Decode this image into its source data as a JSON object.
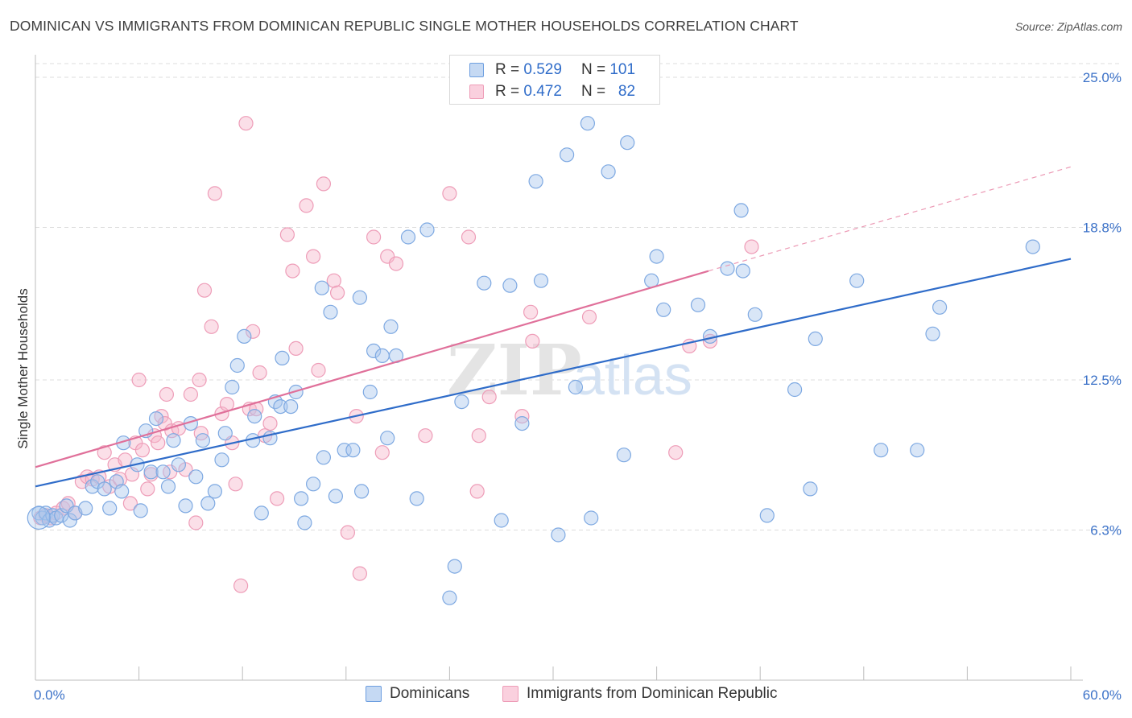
{
  "header": {
    "title": "DOMINICAN VS IMMIGRANTS FROM DOMINICAN REPUBLIC SINGLE MOTHER HOUSEHOLDS CORRELATION CHART",
    "source": "Source: ZipAtlas.com"
  },
  "legend_top": {
    "r_label": "R =",
    "n_label": "N =",
    "rows": [
      {
        "r": "0.529",
        "n": "101",
        "color": "#aac8ee"
      },
      {
        "r": "0.472",
        "n": "82",
        "color": "#f6b8cc"
      }
    ]
  },
  "watermark": {
    "zip": "ZIP",
    "atlas": "atlas"
  },
  "chart_data": {
    "type": "scatter",
    "title": "DOMINICAN VS IMMIGRANTS FROM DOMINICAN REPUBLIC SINGLE MOTHER HOUSEHOLDS CORRELATION CHART",
    "ylabel": "Single Mother Households",
    "xlabel": "",
    "xlim": [
      0,
      60
    ],
    "ylim": [
      0,
      26.3
    ],
    "x_tick_labels": [
      "0.0%",
      "60.0%"
    ],
    "y_ticks": [
      6.3,
      12.5,
      18.8,
      25.0
    ],
    "y_tick_labels": [
      "6.3%",
      "12.5%",
      "18.8%",
      "25.0%"
    ],
    "grid": true,
    "legend_position": "bottom",
    "colors": {
      "dominicans": "#2f6cc9",
      "immigrants": "#e0709a"
    },
    "series": [
      {
        "name": "Dominicans",
        "r": 0.529,
        "n": 101,
        "color": "#6e9fe0",
        "trend": {
          "x0": 0,
          "y0": 8.1,
          "x1": 60,
          "y1": 17.5
        },
        "points": [
          [
            0.2,
            7.0
          ],
          [
            0.4,
            6.8
          ],
          [
            0.6,
            7.0
          ],
          [
            0.8,
            6.7
          ],
          [
            1.0,
            6.9
          ],
          [
            1.2,
            6.8
          ],
          [
            1.5,
            6.9
          ],
          [
            1.8,
            7.3
          ],
          [
            2.0,
            6.7
          ],
          [
            2.3,
            7.0
          ],
          [
            2.9,
            7.2
          ],
          [
            3.3,
            8.1
          ],
          [
            3.6,
            8.3
          ],
          [
            4.0,
            8.0
          ],
          [
            4.3,
            7.2
          ],
          [
            4.7,
            8.3
          ],
          [
            5.0,
            7.9
          ],
          [
            5.1,
            9.9
          ],
          [
            5.9,
            9.0
          ],
          [
            6.1,
            7.1
          ],
          [
            6.4,
            10.4
          ],
          [
            6.7,
            8.7
          ],
          [
            7.0,
            10.9
          ],
          [
            7.4,
            8.7
          ],
          [
            7.7,
            8.1
          ],
          [
            8.0,
            10.0
          ],
          [
            8.3,
            9.0
          ],
          [
            8.7,
            7.3
          ],
          [
            9.0,
            10.7
          ],
          [
            9.3,
            8.5
          ],
          [
            9.7,
            10.0
          ],
          [
            10.0,
            7.4
          ],
          [
            10.4,
            7.9
          ],
          [
            10.8,
            9.2
          ],
          [
            11.0,
            10.3
          ],
          [
            11.4,
            12.2
          ],
          [
            11.7,
            13.1
          ],
          [
            12.1,
            14.3
          ],
          [
            12.6,
            10.0
          ],
          [
            12.7,
            11.0
          ],
          [
            13.1,
            7.0
          ],
          [
            13.6,
            10.1
          ],
          [
            13.9,
            11.6
          ],
          [
            14.2,
            11.4
          ],
          [
            14.3,
            13.4
          ],
          [
            14.8,
            11.4
          ],
          [
            15.1,
            12.0
          ],
          [
            15.4,
            7.6
          ],
          [
            15.6,
            6.6
          ],
          [
            16.1,
            8.2
          ],
          [
            16.6,
            16.3
          ],
          [
            16.7,
            9.3
          ],
          [
            17.1,
            15.3
          ],
          [
            17.4,
            7.7
          ],
          [
            17.9,
            9.6
          ],
          [
            18.4,
            9.6
          ],
          [
            18.8,
            15.9
          ],
          [
            18.9,
            7.9
          ],
          [
            19.4,
            12.0
          ],
          [
            19.6,
            13.7
          ],
          [
            20.1,
            13.5
          ],
          [
            20.4,
            10.1
          ],
          [
            20.6,
            14.7
          ],
          [
            20.9,
            13.5
          ],
          [
            21.6,
            18.4
          ],
          [
            22.1,
            7.6
          ],
          [
            22.7,
            18.7
          ],
          [
            24.0,
            3.5
          ],
          [
            24.3,
            4.8
          ],
          [
            24.7,
            11.6
          ],
          [
            26.0,
            16.5
          ],
          [
            27.0,
            6.7
          ],
          [
            27.5,
            16.4
          ],
          [
            28.2,
            10.7
          ],
          [
            29.0,
            20.7
          ],
          [
            29.3,
            16.6
          ],
          [
            30.3,
            6.1
          ],
          [
            30.8,
            21.8
          ],
          [
            31.3,
            12.2
          ],
          [
            32.0,
            23.1
          ],
          [
            32.2,
            6.8
          ],
          [
            33.2,
            21.1
          ],
          [
            34.1,
            9.4
          ],
          [
            34.3,
            22.3
          ],
          [
            35.7,
            16.6
          ],
          [
            36.0,
            17.6
          ],
          [
            36.4,
            15.4
          ],
          [
            38.4,
            15.6
          ],
          [
            39.1,
            14.3
          ],
          [
            40.1,
            17.1
          ],
          [
            40.9,
            19.5
          ],
          [
            41.0,
            17.0
          ],
          [
            41.7,
            15.2
          ],
          [
            42.4,
            6.9
          ],
          [
            44.0,
            12.1
          ],
          [
            44.9,
            8.0
          ],
          [
            45.2,
            14.2
          ],
          [
            47.6,
            16.6
          ],
          [
            49.0,
            9.6
          ],
          [
            51.1,
            9.6
          ],
          [
            52.0,
            14.4
          ],
          [
            52.4,
            15.5
          ],
          [
            57.8,
            18.0
          ]
        ]
      },
      {
        "name": "Immigrants from Dominican Republic",
        "r": 0.472,
        "n": 82,
        "color": "#ee9db8",
        "trend": {
          "x0": 0,
          "y0": 8.9,
          "x1": 39.0,
          "y1": 17.0
        },
        "trend_ext": {
          "x0": 39.0,
          "y0": 17.0,
          "x1": 60,
          "y1": 21.3
        },
        "points": [
          [
            0.3,
            6.8
          ],
          [
            0.6,
            6.9
          ],
          [
            0.9,
            6.8
          ],
          [
            1.2,
            7.0
          ],
          [
            1.6,
            7.2
          ],
          [
            1.9,
            7.4
          ],
          [
            2.3,
            7.0
          ],
          [
            2.7,
            8.3
          ],
          [
            3.0,
            8.5
          ],
          [
            3.3,
            8.4
          ],
          [
            3.7,
            8.5
          ],
          [
            4.0,
            9.5
          ],
          [
            4.3,
            8.1
          ],
          [
            4.6,
            9.0
          ],
          [
            4.9,
            8.4
          ],
          [
            5.2,
            9.2
          ],
          [
            5.5,
            7.4
          ],
          [
            5.6,
            8.6
          ],
          [
            5.8,
            9.9
          ],
          [
            6.0,
            12.5
          ],
          [
            6.2,
            9.6
          ],
          [
            6.5,
            8.0
          ],
          [
            6.7,
            8.6
          ],
          [
            6.9,
            10.2
          ],
          [
            7.1,
            9.9
          ],
          [
            7.3,
            11.0
          ],
          [
            7.5,
            10.7
          ],
          [
            7.6,
            11.9
          ],
          [
            7.8,
            8.7
          ],
          [
            7.9,
            10.4
          ],
          [
            8.3,
            10.5
          ],
          [
            8.7,
            8.8
          ],
          [
            9.0,
            11.9
          ],
          [
            9.3,
            6.6
          ],
          [
            9.5,
            12.5
          ],
          [
            9.6,
            10.3
          ],
          [
            9.8,
            16.2
          ],
          [
            10.2,
            14.7
          ],
          [
            10.4,
            20.2
          ],
          [
            10.8,
            11.1
          ],
          [
            11.1,
            11.5
          ],
          [
            11.4,
            9.9
          ],
          [
            11.6,
            8.2
          ],
          [
            11.9,
            4.0
          ],
          [
            12.2,
            23.1
          ],
          [
            12.4,
            11.3
          ],
          [
            12.6,
            14.5
          ],
          [
            12.8,
            11.3
          ],
          [
            13.0,
            12.8
          ],
          [
            13.3,
            10.2
          ],
          [
            13.6,
            10.7
          ],
          [
            14.0,
            7.6
          ],
          [
            14.6,
            18.5
          ],
          [
            14.9,
            17.0
          ],
          [
            15.1,
            13.8
          ],
          [
            15.7,
            19.7
          ],
          [
            16.1,
            17.6
          ],
          [
            16.4,
            12.9
          ],
          [
            16.7,
            20.6
          ],
          [
            17.3,
            16.6
          ],
          [
            17.5,
            16.1
          ],
          [
            18.1,
            6.2
          ],
          [
            18.6,
            11.0
          ],
          [
            18.8,
            4.5
          ],
          [
            19.6,
            18.4
          ],
          [
            20.1,
            9.5
          ],
          [
            20.4,
            17.6
          ],
          [
            20.9,
            17.3
          ],
          [
            22.6,
            10.2
          ],
          [
            24.0,
            20.2
          ],
          [
            25.1,
            18.4
          ],
          [
            25.7,
            10.2
          ],
          [
            25.6,
            7.9
          ],
          [
            26.3,
            11.8
          ],
          [
            28.2,
            11.0
          ],
          [
            28.7,
            15.3
          ],
          [
            28.8,
            14.1
          ],
          [
            32.1,
            15.1
          ],
          [
            37.1,
            9.5
          ],
          [
            37.9,
            13.9
          ],
          [
            39.1,
            14.1
          ],
          [
            41.5,
            18.0
          ]
        ]
      }
    ]
  },
  "bottom_legend": {
    "items": [
      {
        "label": "Dominicans",
        "color": "#aac8ee"
      },
      {
        "label": "Immigrants from Dominican Republic",
        "color": "#f6b8cc"
      }
    ]
  }
}
